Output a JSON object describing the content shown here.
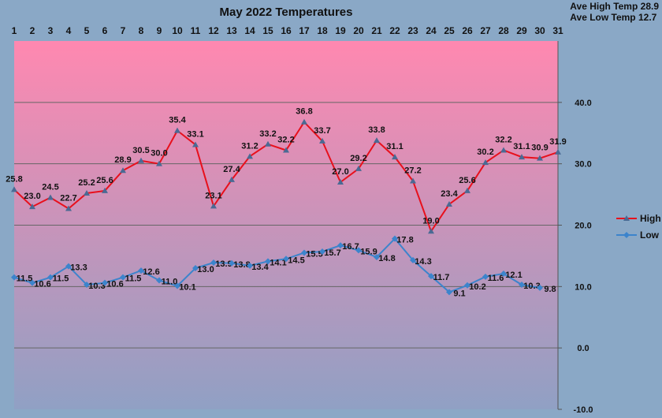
{
  "chart_data": {
    "type": "line",
    "title": "May 2022 Temperatures",
    "stats": {
      "ave_high_label": "Ave High Temp 28.9",
      "ave_low_label": "Ave Low Temp 12.7"
    },
    "x": [
      1,
      2,
      3,
      4,
      5,
      6,
      7,
      8,
      9,
      10,
      11,
      12,
      13,
      14,
      15,
      16,
      17,
      18,
      19,
      20,
      21,
      22,
      23,
      24,
      25,
      26,
      27,
      28,
      29,
      30,
      31
    ],
    "x_ticks_position": "top",
    "ylim": [
      -10,
      50
    ],
    "yticks": [
      "40.0",
      "30.0",
      "20.0",
      "10.0",
      "0.0",
      "-10.0"
    ],
    "y_axis_position": "right",
    "grid": true,
    "legend_position": "right",
    "background_gradient": [
      "#ff88b0",
      "#90a0c4"
    ],
    "series": [
      {
        "name": "High",
        "color": "#e8101c",
        "marker_color": "#4a6a94",
        "values": [
          25.8,
          23.0,
          24.5,
          22.7,
          25.2,
          25.6,
          28.9,
          30.5,
          30.0,
          35.4,
          33.1,
          23.1,
          27.4,
          31.2,
          33.2,
          32.2,
          36.8,
          33.7,
          27.0,
          29.2,
          33.8,
          31.1,
          27.2,
          19.0,
          23.4,
          25.6,
          30.2,
          32.2,
          31.1,
          30.9,
          31.9
        ]
      },
      {
        "name": "Low",
        "color": "#3c84cc",
        "marker_color": "#3c84cc",
        "values": [
          11.5,
          10.6,
          11.5,
          13.3,
          10.3,
          10.6,
          11.5,
          12.6,
          11.0,
          10.1,
          13.0,
          13.9,
          13.8,
          13.4,
          14.1,
          14.5,
          15.5,
          15.7,
          16.7,
          15.9,
          14.8,
          17.8,
          14.3,
          11.7,
          9.1,
          10.2,
          11.6,
          12.1,
          10.3,
          9.8,
          null
        ]
      }
    ]
  }
}
